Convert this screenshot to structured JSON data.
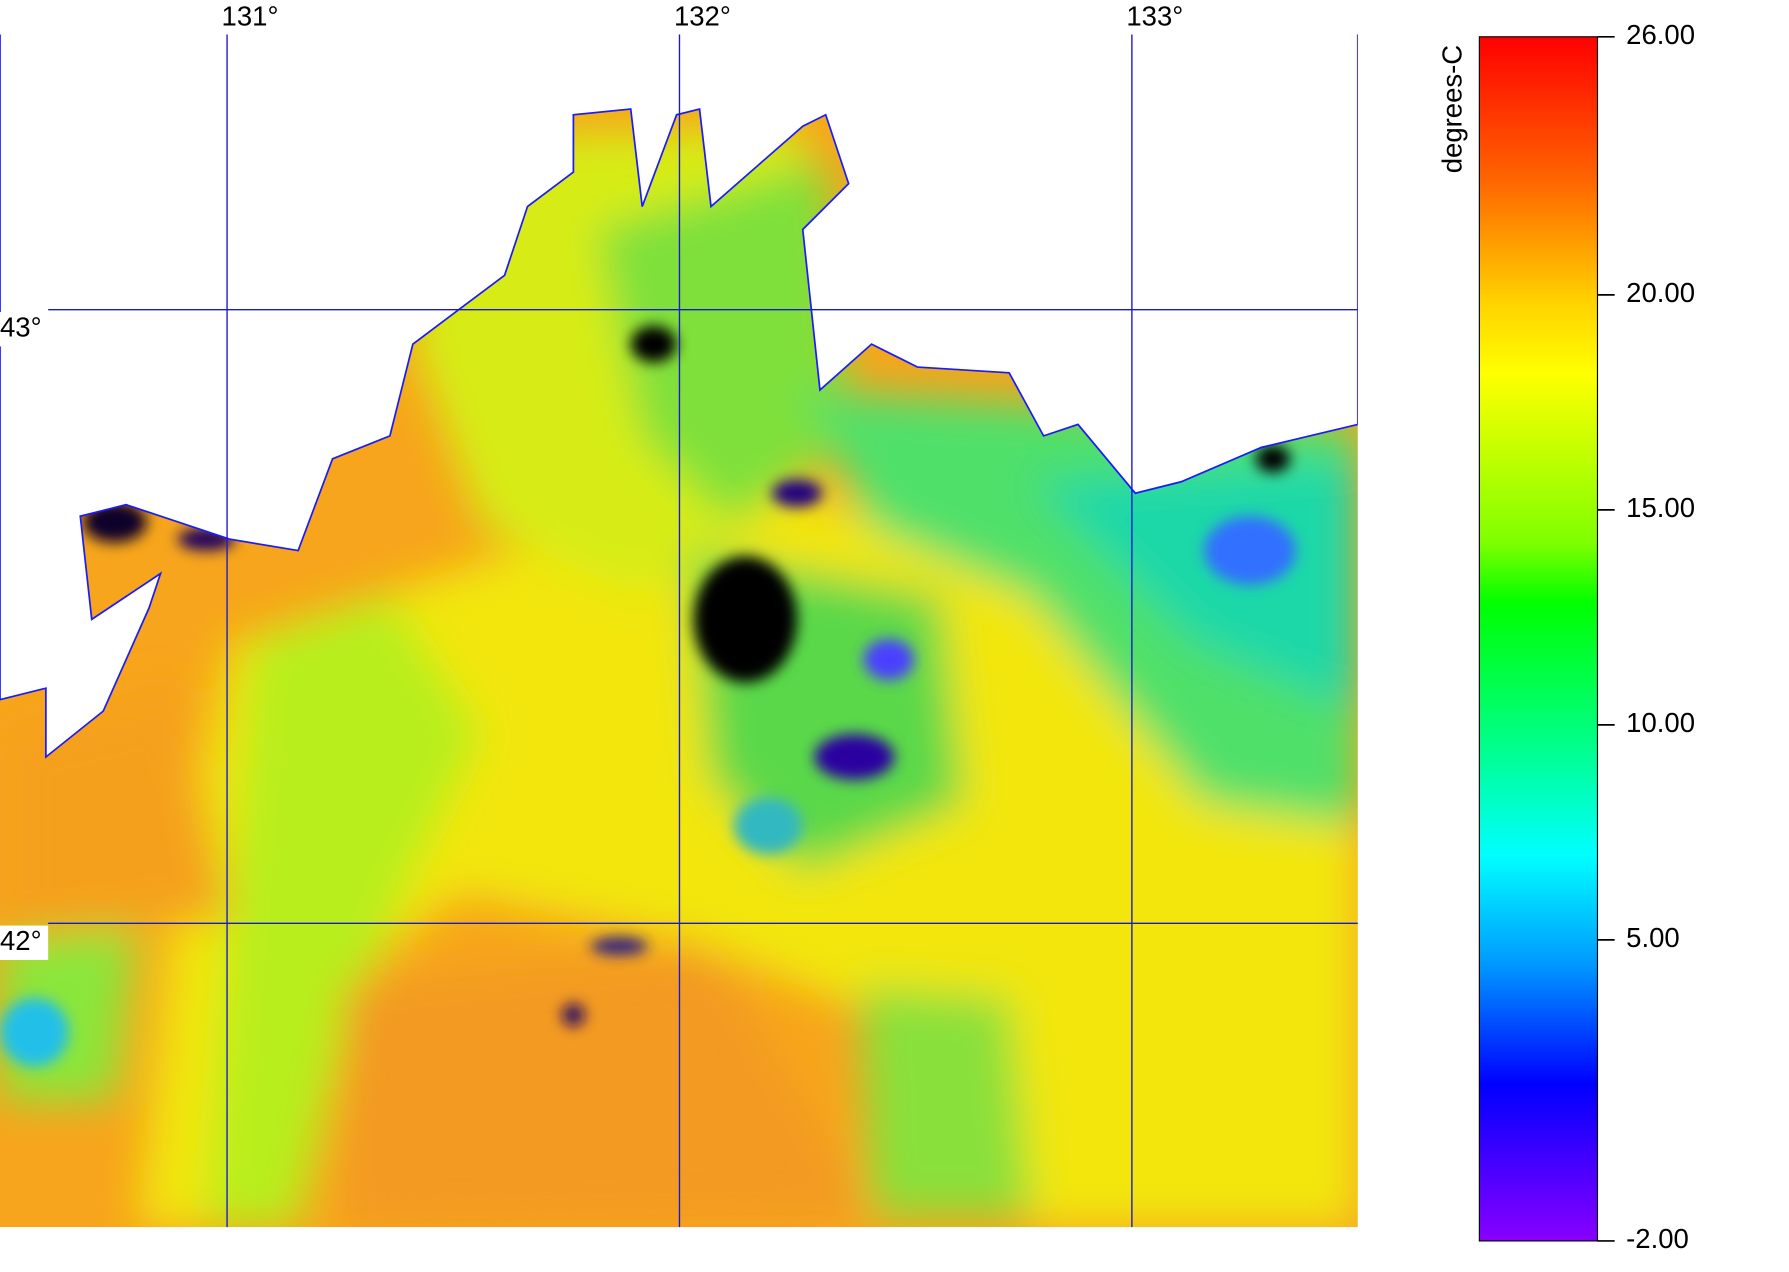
{
  "map": {
    "lon_ticks": [
      {
        "value": 131,
        "label": "131°"
      },
      {
        "value": 132,
        "label": "132°"
      },
      {
        "value": 133,
        "label": "133°"
      }
    ],
    "lat_ticks": [
      {
        "value": 43,
        "label": "43°"
      },
      {
        "value": 42,
        "label": "42°"
      }
    ],
    "colorbar": {
      "title": "degrees-C",
      "range": [
        -2,
        26
      ],
      "ticks": [
        {
          "value": 26,
          "label": "26.00"
        },
        {
          "value": 20,
          "label": "20.00"
        },
        {
          "value": 15,
          "label": "15.00"
        },
        {
          "value": 10,
          "label": "10.00"
        },
        {
          "value": 5,
          "label": "5.00"
        },
        {
          "value": -2,
          "label": "-2.00"
        }
      ]
    }
  }
}
